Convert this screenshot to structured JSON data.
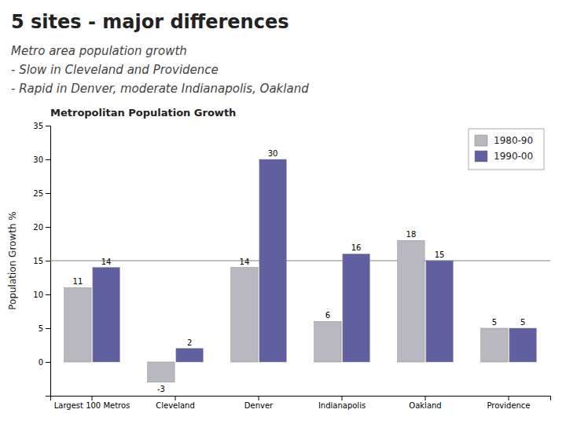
{
  "chart_data": {
    "type": "bar",
    "title": "5 sites -  major differences",
    "subtitle": [
      "Metro area population growth",
      "-  Slow in Cleveland and Providence",
      "-  Rapid in Denver, moderate Indianapolis, Oakland"
    ],
    "annotations": [
      "Metropolitan Population Growth"
    ],
    "ylabel": "Population Growth %",
    "categories": [
      "Largest 100 Metros",
      "Cleveland",
      "Denver",
      "Indianapolis",
      "Oakland",
      "Providence"
    ],
    "series": [
      {
        "name": "1980-90",
        "color": "#b8b8c0",
        "values": [
          11,
          -3,
          14,
          6,
          18,
          5
        ]
      },
      {
        "name": "1990-00",
        "color": "#6060a0",
        "values": [
          14,
          2,
          30,
          16,
          15,
          5
        ]
      }
    ],
    "reference_line": 15,
    "ylim": [
      -5,
      35
    ],
    "yticks": [
      0,
      5,
      10,
      15,
      20,
      25,
      30,
      35
    ],
    "grid": false,
    "legend": "upper right",
    "data_labels": true
  }
}
